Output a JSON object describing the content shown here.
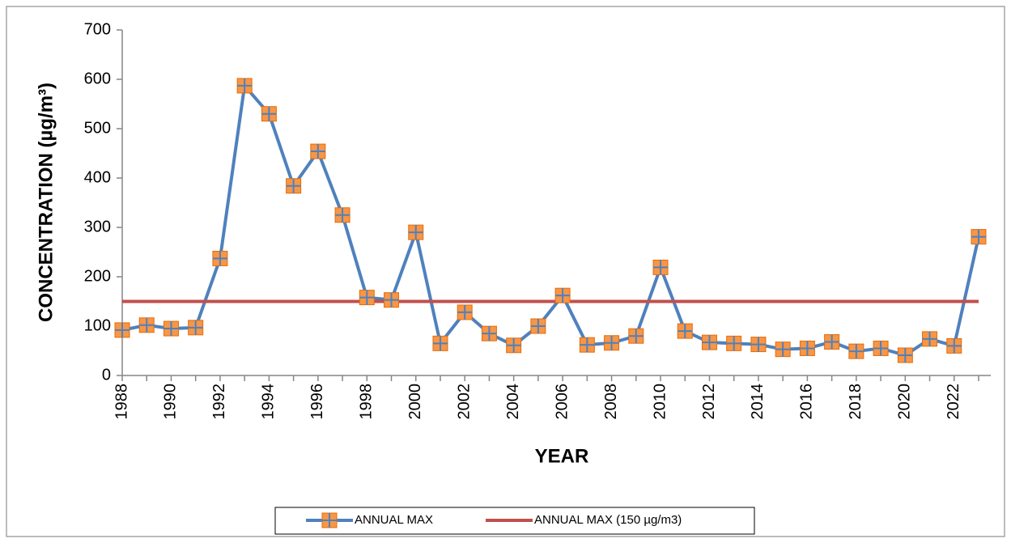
{
  "chart_data": {
    "type": "line",
    "categories": [
      "1988",
      null,
      "1990",
      null,
      "1992",
      null,
      "1994",
      null,
      "1996",
      null,
      "1998",
      null,
      "2000",
      null,
      "2002",
      null,
      "2004",
      null,
      "2006",
      null,
      "2008",
      null,
      "2010",
      null,
      "2012",
      null,
      "2014",
      null,
      "2016",
      null,
      "2018",
      null,
      "2020",
      null,
      "2022",
      null
    ],
    "series": [
      {
        "name": "ANNUAL MAX",
        "color": "#4f81bd",
        "marker_color": "#f79646",
        "values": [
          92,
          102,
          95,
          97,
          237,
          587,
          530,
          384,
          454,
          325,
          158,
          153,
          290,
          65,
          128,
          85,
          61,
          100,
          162,
          62,
          66,
          80,
          219,
          90,
          67,
          65,
          63,
          53,
          55,
          68,
          49,
          55,
          41,
          74,
          60,
          281
        ]
      },
      {
        "name": "ANNUAL MAX (150 µg/m3)",
        "color": "#c0504d",
        "values": [
          150,
          150,
          150,
          150,
          150,
          150,
          150,
          150,
          150,
          150,
          150,
          150,
          150,
          150,
          150,
          150,
          150,
          150,
          150,
          150,
          150,
          150,
          150,
          150,
          150,
          150,
          150,
          150,
          150,
          150,
          150,
          150,
          150,
          150,
          150,
          150
        ]
      }
    ],
    "ylim": [
      0,
      700
    ],
    "yticks": [
      0,
      100,
      200,
      300,
      400,
      500,
      600,
      700
    ],
    "xlabel": "YEAR",
    "ylabel": "CONCENTRATION (µg/m³)",
    "legend": "bottom"
  }
}
